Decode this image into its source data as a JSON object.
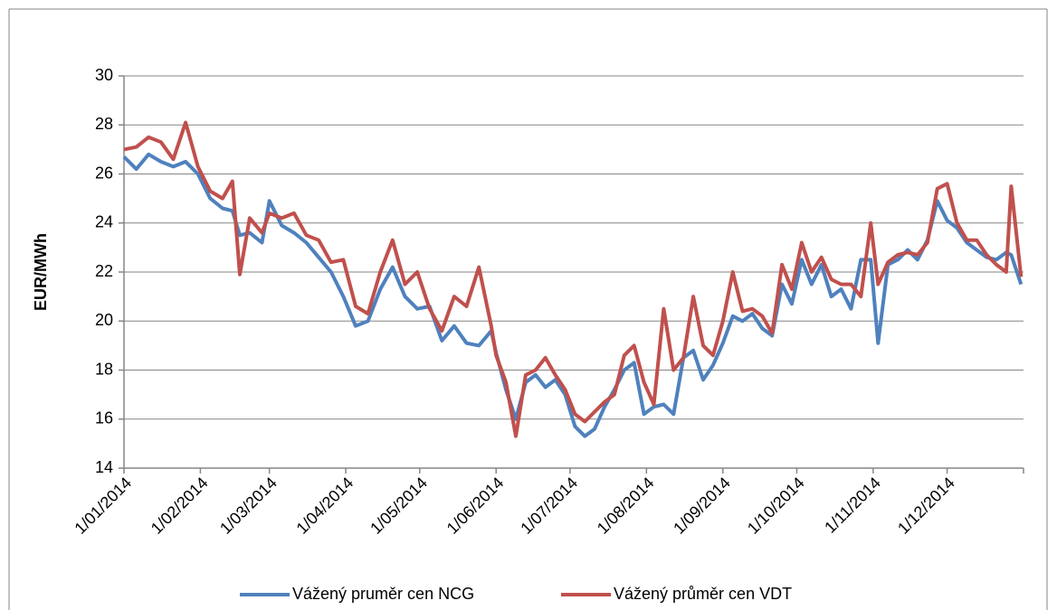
{
  "chart_data": {
    "type": "line",
    "ylabel": "EUR/MWh",
    "x": [
      "1/01/2014",
      "6/01/2014",
      "11/01/2014",
      "16/01/2014",
      "21/01/2014",
      "26/01/2014",
      "31/01/2014",
      "5/02/2014",
      "10/02/2014",
      "14/02/2014",
      "17/02/2014",
      "21/02/2014",
      "26/02/2014",
      "1/03/2014",
      "6/03/2014",
      "11/03/2014",
      "16/03/2014",
      "21/03/2014",
      "26/03/2014",
      "31/03/2014",
      "5/04/2014",
      "10/04/2014",
      "15/04/2014",
      "20/04/2014",
      "25/04/2014",
      "30/04/2014",
      "5/05/2014",
      "10/05/2014",
      "15/05/2014",
      "20/05/2014",
      "25/05/2014",
      "30/05/2014",
      "1/06/2014",
      "5/06/2014",
      "9/06/2014",
      "13/06/2014",
      "17/06/2014",
      "21/06/2014",
      "25/06/2014",
      "29/06/2014",
      "3/07/2014",
      "7/07/2014",
      "11/07/2014",
      "15/07/2014",
      "19/07/2014",
      "23/07/2014",
      "27/07/2014",
      "31/07/2014",
      "4/08/2014",
      "8/08/2014",
      "12/08/2014",
      "16/08/2014",
      "20/08/2014",
      "24/08/2014",
      "28/08/2014",
      "1/09/2014",
      "5/09/2014",
      "9/09/2014",
      "13/09/2014",
      "17/09/2014",
      "21/09/2014",
      "25/09/2014",
      "29/09/2014",
      "3/10/2014",
      "7/10/2014",
      "11/10/2014",
      "15/10/2014",
      "19/10/2014",
      "23/10/2014",
      "27/10/2014",
      "31/10/2014",
      "3/11/2014",
      "7/11/2014",
      "11/11/2014",
      "15/11/2014",
      "19/11/2014",
      "23/11/2014",
      "27/11/2014",
      "1/12/2014",
      "5/12/2014",
      "9/12/2014",
      "13/12/2014",
      "17/12/2014",
      "21/12/2014",
      "25/12/2014",
      "27/12/2014",
      "31/12/2014"
    ],
    "series": [
      {
        "name": "Vážený pruměr cen NCG",
        "color": "#4f81bd",
        "values": [
          26.7,
          26.2,
          26.8,
          26.5,
          26.3,
          26.5,
          26.0,
          25.0,
          24.6,
          24.5,
          23.5,
          23.6,
          23.2,
          24.9,
          23.9,
          23.6,
          23.2,
          22.6,
          22.0,
          21.0,
          19.8,
          20.0,
          21.3,
          22.2,
          21.0,
          20.5,
          20.6,
          19.2,
          19.8,
          19.1,
          19.0,
          19.6,
          18.7,
          17.2,
          16.0,
          17.5,
          17.8,
          17.3,
          17.6,
          17.0,
          15.7,
          15.3,
          15.6,
          16.5,
          17.2,
          18.0,
          18.3,
          16.2,
          16.5,
          16.6,
          16.2,
          18.5,
          18.8,
          17.6,
          18.2,
          19.1,
          20.2,
          20.0,
          20.3,
          19.7,
          19.4,
          21.5,
          20.7,
          22.5,
          21.5,
          22.3,
          21.0,
          21.3,
          20.5,
          22.5,
          22.5,
          19.1,
          22.3,
          22.5,
          22.9,
          22.5,
          23.3,
          24.9,
          24.1,
          23.8,
          23.2,
          22.9,
          22.6,
          22.5,
          22.8,
          22.7,
          21.5
        ]
      },
      {
        "name": "Vážený průměr cen VDT",
        "color": "#c0504d",
        "values": [
          27.0,
          27.1,
          27.5,
          27.3,
          26.6,
          28.1,
          26.3,
          25.3,
          25.0,
          25.7,
          21.9,
          24.2,
          23.6,
          24.4,
          24.2,
          24.4,
          23.5,
          23.3,
          22.4,
          22.5,
          20.6,
          20.3,
          22.0,
          23.3,
          21.5,
          22.0,
          20.5,
          19.6,
          21.0,
          20.6,
          22.2,
          19.8,
          18.6,
          17.5,
          15.3,
          17.8,
          18.0,
          18.5,
          17.8,
          17.2,
          16.2,
          15.9,
          16.3,
          16.7,
          17.0,
          18.6,
          19.0,
          17.5,
          16.6,
          20.5,
          18.0,
          18.5,
          21.0,
          19.0,
          18.6,
          20.0,
          22.0,
          20.4,
          20.5,
          20.2,
          19.5,
          22.3,
          21.3,
          23.2,
          22.0,
          22.6,
          21.7,
          21.5,
          21.5,
          21.0,
          24.0,
          21.5,
          22.4,
          22.7,
          22.8,
          22.7,
          23.2,
          25.4,
          25.6,
          24.0,
          23.3,
          23.3,
          22.7,
          22.3,
          22.0,
          25.5,
          21.8
        ]
      }
    ],
    "xlim": [
      "1/01/2014",
      "1/01/2015"
    ],
    "xticks": [
      "1/01/2014",
      "1/02/2014",
      "1/03/2014",
      "1/04/2014",
      "1/05/2014",
      "1/06/2014",
      "1/07/2014",
      "1/08/2014",
      "1/09/2014",
      "1/10/2014",
      "1/11/2014",
      "1/12/2014"
    ],
    "ylim": [
      14,
      30
    ],
    "yticks": [
      14,
      16,
      18,
      20,
      22,
      24,
      26,
      28,
      30
    ],
    "grid": true
  }
}
